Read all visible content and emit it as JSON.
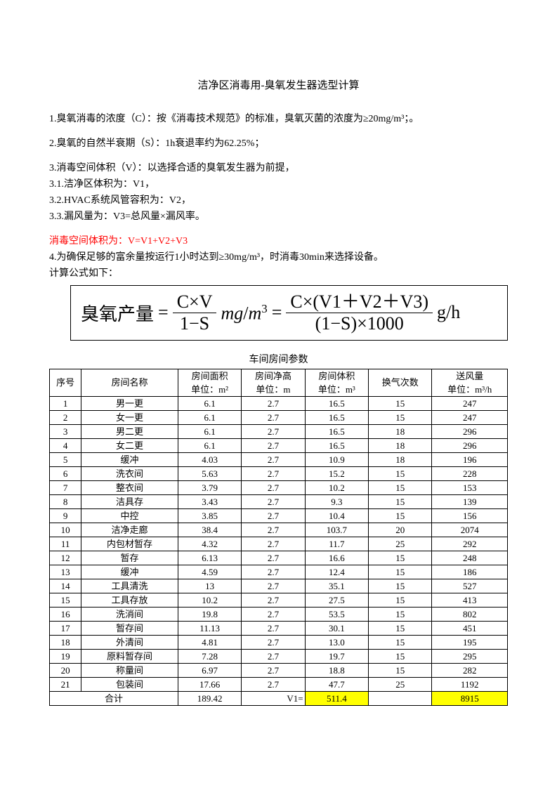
{
  "title": "洁净区消毒用-臭氧发生器选型计算",
  "p1": "1.臭氧消毒的浓度（C）：按《消毒技术规范》的标准，臭氧灭菌的浓度为≥20mg/m³；。",
  "p2": "2.臭氧的自然半衰期（S）：1h衰退率约为62.25%；",
  "p3": "3.消毒空间体积（V）：以选择合适的臭氧发生器为前提，",
  "p3_1": "3.1.洁净区体积为：V1，",
  "p3_2": "3.2.HVAC系统风管容积为：V2，",
  "p3_3": "3.3.漏风量为：V3=总风量×漏风率。",
  "p_red": "消毒空间体积为：V=V1+V2+V3",
  "p4a": "4.为确保足够的富余量按运行1小时达到≥30mg/m³，时消毒30min来选择设备。",
  "p4b": "计算公式如下：",
  "formula": {
    "label": "臭氧产量",
    "eq": "=",
    "n1": "C×V",
    "d1": "1−S",
    "unit1a": "mg",
    "unit1b": "/",
    "unit1c": "m",
    "unit1d": "3",
    "n2": "C×(V1＋V2＋V3)",
    "d2": "(1−S)×1000",
    "unit2": "g/h"
  },
  "table_title": "车间房间参数",
  "head": {
    "no": "序号",
    "name": "房间名称",
    "area": "房间面积",
    "h": "房间净高",
    "vol": "房间体积",
    "ach": "换气次数",
    "air": "送风量",
    "u_area": "单位：m²",
    "u_h": "单位：m",
    "u_vol": "单位：m³",
    "u_air": "单位：m³/h"
  },
  "rows": [
    {
      "no": "1",
      "name": "男一更",
      "area": "6.1",
      "h": "2.7",
      "vol": "16.5",
      "ach": "15",
      "air": "247"
    },
    {
      "no": "2",
      "name": "女一更",
      "area": "6.1",
      "h": "2.7",
      "vol": "16.5",
      "ach": "15",
      "air": "247"
    },
    {
      "no": "3",
      "name": "男二更",
      "area": "6.1",
      "h": "2.7",
      "vol": "16.5",
      "ach": "18",
      "air": "296"
    },
    {
      "no": "4",
      "name": "女二更",
      "area": "6.1",
      "h": "2.7",
      "vol": "16.5",
      "ach": "18",
      "air": "296"
    },
    {
      "no": "5",
      "name": "缓冲",
      "area": "4.03",
      "h": "2.7",
      "vol": "10.9",
      "ach": "18",
      "air": "196"
    },
    {
      "no": "6",
      "name": "洗衣间",
      "area": "5.63",
      "h": "2.7",
      "vol": "15.2",
      "ach": "15",
      "air": "228"
    },
    {
      "no": "7",
      "name": "整衣间",
      "area": "3.79",
      "h": "2.7",
      "vol": "10.2",
      "ach": "15",
      "air": "153"
    },
    {
      "no": "8",
      "name": "洁具存",
      "area": "3.43",
      "h": "2.7",
      "vol": "9.3",
      "ach": "15",
      "air": "139"
    },
    {
      "no": "9",
      "name": "中控",
      "area": "3.85",
      "h": "2.7",
      "vol": "10.4",
      "ach": "15",
      "air": "156"
    },
    {
      "no": "10",
      "name": "洁净走廊",
      "area": "38.4",
      "h": "2.7",
      "vol": "103.7",
      "ach": "20",
      "air": "2074"
    },
    {
      "no": "11",
      "name": "内包材暂存",
      "area": "4.32",
      "h": "2.7",
      "vol": "11.7",
      "ach": "25",
      "air": "292"
    },
    {
      "no": "12",
      "name": "暂存",
      "area": "6.13",
      "h": "2.7",
      "vol": "16.6",
      "ach": "15",
      "air": "248"
    },
    {
      "no": "13",
      "name": "缓冲",
      "area": "4.59",
      "h": "2.7",
      "vol": "12.4",
      "ach": "15",
      "air": "186"
    },
    {
      "no": "14",
      "name": "工具清洗",
      "area": "13",
      "h": "2.7",
      "vol": "35.1",
      "ach": "15",
      "air": "527"
    },
    {
      "no": "15",
      "name": "工具存放",
      "area": "10.2",
      "h": "2.7",
      "vol": "27.5",
      "ach": "15",
      "air": "413"
    },
    {
      "no": "16",
      "name": "洗消间",
      "area": "19.8",
      "h": "2.7",
      "vol": "53.5",
      "ach": "15",
      "air": "802"
    },
    {
      "no": "17",
      "name": "暂存间",
      "area": "11.13",
      "h": "2.7",
      "vol": "30.1",
      "ach": "15",
      "air": "451"
    },
    {
      "no": "18",
      "name": "外清间",
      "area": "4.81",
      "h": "2.7",
      "vol": "13.0",
      "ach": "15",
      "air": "195"
    },
    {
      "no": "19",
      "name": "原料暂存间",
      "area": "7.28",
      "h": "2.7",
      "vol": "19.7",
      "ach": "15",
      "air": "295"
    },
    {
      "no": "20",
      "name": "称量间",
      "area": "6.97",
      "h": "2.7",
      "vol": "18.8",
      "ach": "15",
      "air": "282"
    },
    {
      "no": "21",
      "name": "包装间",
      "area": "17.66",
      "h": "2.7",
      "vol": "47.7",
      "ach": "25",
      "air": "1192"
    }
  ],
  "total": {
    "label": "合计",
    "area": "189.42",
    "v1": "V1=",
    "vol": "511.4",
    "air": "8915"
  },
  "colors": {
    "highlight": "#ffff00",
    "text_red": "#ff0000",
    "text": "#000000",
    "bg": "#ffffff",
    "border": "#000000"
  },
  "fonts": {
    "body": "SimSun",
    "formula": "Times New Roman",
    "body_size_pt": 10.5,
    "formula_size_pt": 20
  }
}
